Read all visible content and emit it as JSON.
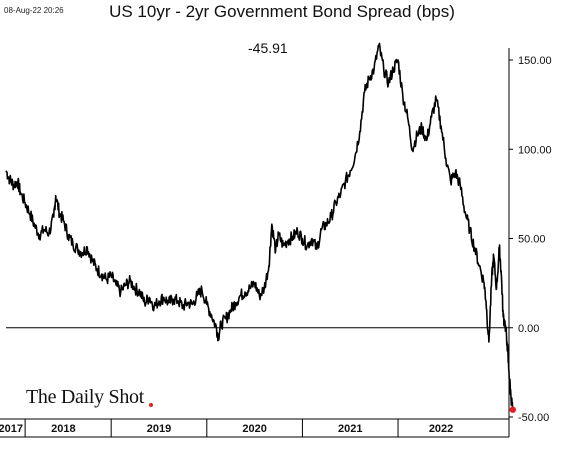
{
  "timestamp": "08-Aug-22 20:26",
  "logo_text": "The Daily Shot",
  "logo_mark": "®",
  "colors": {
    "line": "#000000",
    "last_point": "#e02020",
    "zero_line": "#000000",
    "axis": "#000000"
  },
  "chart_data": {
    "type": "line",
    "title": "US 10yr - 2yr Government Bond Spread (bps)",
    "last_value_label": "-45.91",
    "ylim": [
      -50,
      160
    ],
    "y_ticks": [
      150,
      100,
      50,
      0,
      -50
    ],
    "y_tick_labels": [
      "150.00",
      "100.00",
      "50.00",
      "0.00",
      "-50.00"
    ],
    "x_range": [
      2017.4,
      2022.65
    ],
    "x_labels": [
      {
        "label": "2017",
        "center": 2017.45
      },
      {
        "label": "2018",
        "center": 2018.0
      },
      {
        "label": "2019",
        "center": 2019.0
      },
      {
        "label": "2020",
        "center": 2020.0
      },
      {
        "label": "2021",
        "center": 2021.0
      },
      {
        "label": "2022",
        "center": 2021.95
      }
    ],
    "x_boundaries": [
      2017.6,
      2018.5,
      2019.5,
      2020.5,
      2021.5
    ],
    "zero_line": 0,
    "series": [
      {
        "values": [
          [
            2017.4,
            88
          ],
          [
            2017.44,
            83
          ],
          [
            2017.48,
            80
          ],
          [
            2017.52,
            82
          ],
          [
            2017.55,
            76
          ],
          [
            2017.6,
            70
          ],
          [
            2017.65,
            64
          ],
          [
            2017.7,
            57
          ],
          [
            2017.75,
            52
          ],
          [
            2017.8,
            55
          ],
          [
            2017.85,
            53
          ],
          [
            2017.9,
            62
          ],
          [
            2017.92,
            74
          ],
          [
            2017.96,
            64
          ],
          [
            2018.0,
            60
          ],
          [
            2018.05,
            52
          ],
          [
            2018.1,
            47
          ],
          [
            2018.15,
            44
          ],
          [
            2018.2,
            42
          ],
          [
            2018.25,
            45
          ],
          [
            2018.3,
            38
          ],
          [
            2018.35,
            33
          ],
          [
            2018.4,
            30
          ],
          [
            2018.45,
            27
          ],
          [
            2018.5,
            29
          ],
          [
            2018.55,
            24
          ],
          [
            2018.6,
            20
          ],
          [
            2018.65,
            24
          ],
          [
            2018.7,
            26
          ],
          [
            2018.75,
            22
          ],
          [
            2018.8,
            20
          ],
          [
            2018.85,
            14
          ],
          [
            2018.9,
            17
          ],
          [
            2018.95,
            12
          ],
          [
            2019.0,
            15
          ],
          [
            2019.05,
            17
          ],
          [
            2019.1,
            14
          ],
          [
            2019.15,
            16
          ],
          [
            2019.2,
            15
          ],
          [
            2019.25,
            12
          ],
          [
            2019.3,
            14
          ],
          [
            2019.35,
            13
          ],
          [
            2019.4,
            18
          ],
          [
            2019.45,
            21
          ],
          [
            2019.5,
            13
          ],
          [
            2019.55,
            7
          ],
          [
            2019.6,
            0
          ],
          [
            2019.62,
            -5
          ],
          [
            2019.65,
            2
          ],
          [
            2019.7,
            5
          ],
          [
            2019.75,
            10
          ],
          [
            2019.8,
            14
          ],
          [
            2019.85,
            18
          ],
          [
            2019.9,
            20
          ],
          [
            2019.95,
            22
          ],
          [
            2020.0,
            25
          ],
          [
            2020.05,
            18
          ],
          [
            2020.1,
            22
          ],
          [
            2020.15,
            35
          ],
          [
            2020.18,
            58
          ],
          [
            2020.22,
            43
          ],
          [
            2020.25,
            52
          ],
          [
            2020.3,
            46
          ],
          [
            2020.35,
            49
          ],
          [
            2020.4,
            51
          ],
          [
            2020.45,
            54
          ],
          [
            2020.5,
            50
          ],
          [
            2020.55,
            46
          ],
          [
            2020.6,
            50
          ],
          [
            2020.65,
            44
          ],
          [
            2020.7,
            55
          ],
          [
            2020.75,
            58
          ],
          [
            2020.8,
            62
          ],
          [
            2020.85,
            70
          ],
          [
            2020.9,
            75
          ],
          [
            2020.95,
            82
          ],
          [
            2021.0,
            88
          ],
          [
            2021.05,
            96
          ],
          [
            2021.1,
            110
          ],
          [
            2021.15,
            132
          ],
          [
            2021.2,
            140
          ],
          [
            2021.25,
            145
          ],
          [
            2021.3,
            158
          ],
          [
            2021.35,
            145
          ],
          [
            2021.4,
            137
          ],
          [
            2021.45,
            145
          ],
          [
            2021.5,
            150
          ],
          [
            2021.55,
            130
          ],
          [
            2021.6,
            118
          ],
          [
            2021.65,
            100
          ],
          [
            2021.7,
            108
          ],
          [
            2021.75,
            112
          ],
          [
            2021.8,
            105
          ],
          [
            2021.85,
            118
          ],
          [
            2021.9,
            128
          ],
          [
            2021.95,
            113
          ],
          [
            2022.0,
            95
          ],
          [
            2022.05,
            82
          ],
          [
            2022.1,
            87
          ],
          [
            2022.15,
            80
          ],
          [
            2022.2,
            65
          ],
          [
            2022.25,
            55
          ],
          [
            2022.3,
            45
          ],
          [
            2022.35,
            35
          ],
          [
            2022.4,
            25
          ],
          [
            2022.42,
            15
          ],
          [
            2022.45,
            -8
          ],
          [
            2022.48,
            28
          ],
          [
            2022.5,
            40
          ],
          [
            2022.53,
            22
          ],
          [
            2022.56,
            45
          ],
          [
            2022.58,
            30
          ],
          [
            2022.6,
            6
          ],
          [
            2022.62,
            2
          ],
          [
            2022.64,
            -8
          ],
          [
            2022.66,
            -25
          ],
          [
            2022.68,
            -38
          ],
          [
            2022.7,
            -45.91
          ]
        ]
      }
    ]
  }
}
